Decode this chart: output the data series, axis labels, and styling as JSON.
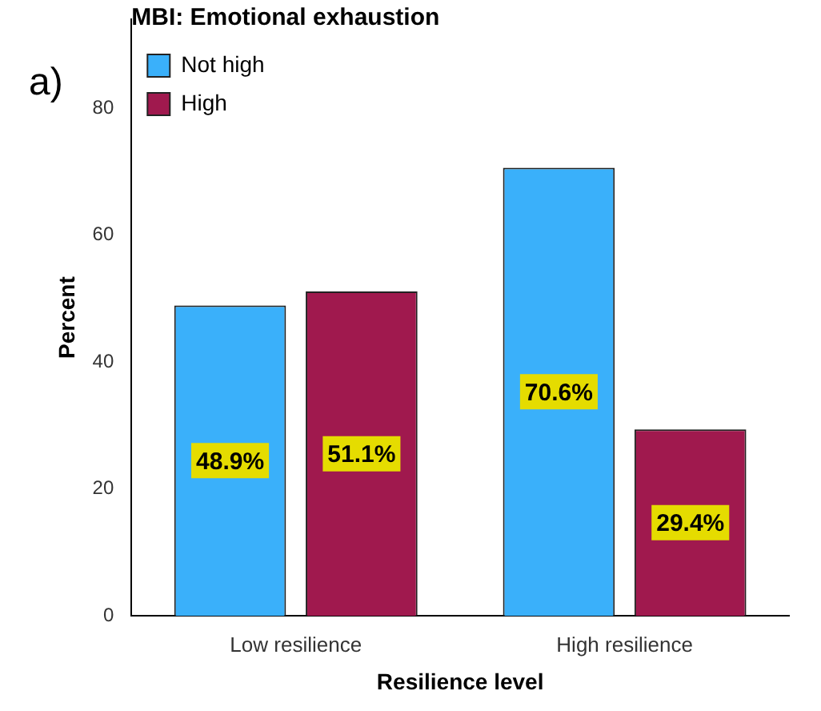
{
  "chart_data": {
    "type": "bar",
    "xlabel": "Resilience level",
    "ylabel": "Percent",
    "legend_title": "MBI: Emotional exhaustion",
    "annotations": [
      "a)"
    ],
    "categories": [
      "Low resilience",
      "High resilience"
    ],
    "series": [
      {
        "name": "Not high",
        "color": "#3ab0fa",
        "values": [
          48.9,
          70.6
        ],
        "value_labels": [
          "48.9%",
          "70.6%"
        ]
      },
      {
        "name": "High",
        "color": "#a0194e",
        "values": [
          51.1,
          29.4
        ],
        "value_labels": [
          "51.1%",
          "29.4%"
        ]
      }
    ],
    "ylim": [
      0,
      94
    ],
    "yticks": [
      0,
      20,
      40,
      60,
      80
    ],
    "grid": false,
    "legend": "top left"
  }
}
